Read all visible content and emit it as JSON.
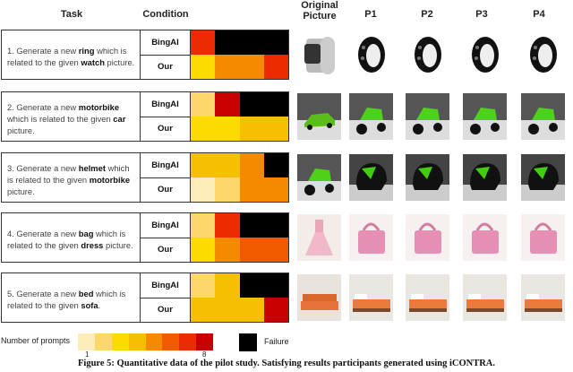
{
  "headers": {
    "task": "Task",
    "condition": "Condition",
    "original": "Original Picture",
    "prompts": [
      "P1",
      "P2",
      "P3",
      "P4"
    ]
  },
  "conditions": {
    "bing": "BingAI",
    "ours": "Our"
  },
  "color_scale": {
    "1": "#FDEBB8",
    "2": "#FDD76A",
    "3": "#FDDB00",
    "4": "#F5C000",
    "5": "#F58A00",
    "6": "#F25A00",
    "7": "#EE2A00",
    "8": "#C80000",
    "failure": "#000000"
  },
  "tasks": [
    {
      "parts": [
        [
          "1. Generate a new ",
          false
        ],
        [
          "ring",
          true
        ],
        [
          " which is related to the given ",
          false
        ],
        [
          "watch",
          true
        ],
        [
          " picture.",
          false
        ]
      ],
      "bing": [
        7,
        "failure",
        "failure",
        "failure"
      ],
      "ours": [
        3,
        5,
        5,
        7
      ],
      "images": {
        "original": "watch",
        "generated": [
          "ring",
          "ring",
          "ring",
          "ring"
        ]
      }
    },
    {
      "parts": [
        [
          "2. Generate a new ",
          false
        ],
        [
          "motorbike",
          true
        ],
        [
          " which is related to the given ",
          false
        ],
        [
          "car",
          true
        ],
        [
          " picture.",
          false
        ]
      ],
      "bing": [
        2,
        8,
        "failure",
        "failure"
      ],
      "ours": [
        3,
        3,
        4,
        4
      ],
      "images": {
        "original": "car",
        "generated": [
          "motorbike",
          "motorbike",
          "motorbike",
          "motorbike"
        ]
      }
    },
    {
      "parts": [
        [
          "3. Generate a new ",
          false
        ],
        [
          "helmet",
          true
        ],
        [
          " which is related to the given ",
          false
        ],
        [
          "motorbike",
          true
        ],
        [
          " picture.",
          false
        ]
      ],
      "bing": [
        4,
        4,
        5,
        "failure"
      ],
      "ours": [
        1,
        2,
        5,
        5
      ],
      "images": {
        "original": "motorbike",
        "generated": [
          "helmet",
          "helmet",
          "helmet",
          "helmet"
        ]
      }
    },
    {
      "parts": [
        [
          "4. Generate a new ",
          false
        ],
        [
          "bag",
          true
        ],
        [
          " which is related to the given ",
          false
        ],
        [
          "dress",
          true
        ],
        [
          " picture.",
          false
        ]
      ],
      "bing": [
        2,
        7,
        "failure",
        "failure"
      ],
      "ours": [
        3,
        5,
        6,
        6
      ],
      "images": {
        "original": "dress",
        "generated": [
          "bag",
          "bag",
          "bag",
          "bag"
        ]
      }
    },
    {
      "parts": [
        [
          "5. Generate a new ",
          false
        ],
        [
          "bed",
          true
        ],
        [
          " which is related to the given ",
          false
        ],
        [
          "sofa",
          true
        ],
        [
          ".",
          false
        ]
      ],
      "bing": [
        2,
        4,
        "failure",
        "failure"
      ],
      "ours": [
        4,
        4,
        4,
        8
      ],
      "images": {
        "original": "sofa",
        "generated": [
          "bed",
          "bed",
          "bed",
          "bed"
        ]
      }
    }
  ],
  "legend": {
    "label": "Number of prompts",
    "min": "1",
    "max": "8",
    "failure": "Failure"
  },
  "caption": "Figure 5: Quantitative data of the pilot study. Satisfying results participants generated using iCONTRA."
}
